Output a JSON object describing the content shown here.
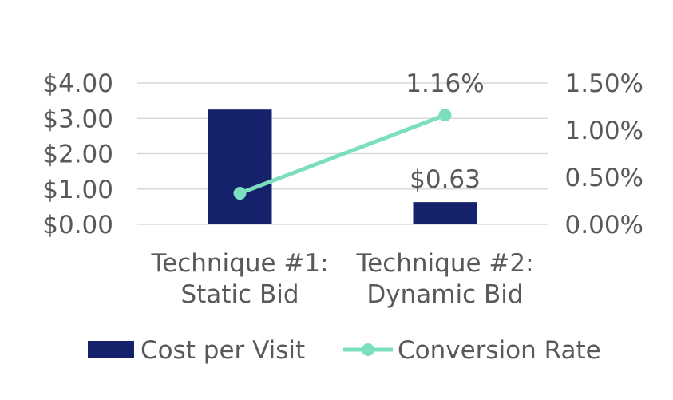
{
  "chart_data": {
    "type": "bar",
    "categories": [
      [
        "Technique #1:",
        "Static Bid"
      ],
      [
        "Technique #2:",
        "Dynamic Bid"
      ]
    ],
    "series": [
      {
        "name": "Cost per Visit",
        "type": "bar",
        "axis": "left",
        "values": [
          3.25,
          0.63
        ],
        "data_labels": [
          "",
          "$0.63"
        ]
      },
      {
        "name": "Conversion Rate",
        "type": "line",
        "axis": "right",
        "values": [
          0.33,
          1.16
        ],
        "data_labels": [
          "",
          "1.16%"
        ]
      }
    ],
    "y_left": {
      "ylim": [
        0,
        4
      ],
      "ticks": [
        0,
        1,
        2,
        3,
        4
      ],
      "tick_labels": [
        "$0.00",
        "$1.00",
        "$2.00",
        "$3.00",
        "$4.00"
      ]
    },
    "y_right": {
      "ylim": [
        0,
        1.5
      ],
      "ticks": [
        0,
        0.5,
        1.0,
        1.5
      ],
      "tick_labels": [
        "0.00%",
        "0.50%",
        "1.00%",
        "1.50%"
      ]
    },
    "grid": true,
    "legend": "bottom",
    "colors": {
      "bar": "#15216b",
      "line": "#7bdfbf",
      "grid": "#d9d9d9",
      "text": "#595959"
    }
  }
}
